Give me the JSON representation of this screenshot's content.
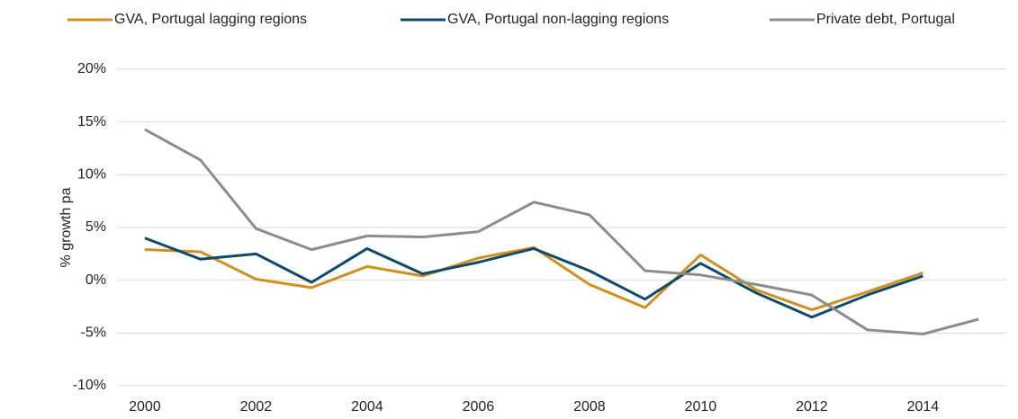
{
  "chart_data": {
    "type": "line",
    "y_label": "% growth pa",
    "x": [
      2000,
      2001,
      2002,
      2003,
      2004,
      2005,
      2006,
      2007,
      2008,
      2009,
      2010,
      2011,
      2012,
      2013,
      2014,
      2015
    ],
    "xlim": [
      1999.5,
      2015.5
    ],
    "xticks": [
      2000,
      2002,
      2004,
      2006,
      2008,
      2010,
      2012,
      2014
    ],
    "ylim": [
      -10,
      20
    ],
    "yticks": [
      {
        "value": -10,
        "label": "-10%"
      },
      {
        "value": -5,
        "label": "-5%"
      },
      {
        "value": 0,
        "label": "0%"
      },
      {
        "value": 5,
        "label": "5%"
      },
      {
        "value": 10,
        "label": "10%"
      },
      {
        "value": 15,
        "label": "15%"
      },
      {
        "value": 20,
        "label": "20%"
      }
    ],
    "grid": true,
    "legend": "top",
    "series": [
      {
        "name": "GVA, Portugal lagging regions",
        "color": "#d09020",
        "values": [
          2.9,
          2.7,
          0.1,
          -0.7,
          1.3,
          0.4,
          2.1,
          3.1,
          -0.4,
          -2.6,
          2.4,
          -0.9,
          -2.8,
          -1.1,
          0.7,
          null
        ]
      },
      {
        "name": "GVA, Portugal non-lagging regions",
        "color": "#0e4a6a",
        "values": [
          4.0,
          2.0,
          2.5,
          -0.2,
          3.0,
          0.6,
          1.7,
          3.0,
          0.9,
          -1.8,
          1.6,
          -1.2,
          -3.5,
          -1.4,
          0.4,
          null
        ]
      },
      {
        "name": "Private debt, Portugal",
        "color": "#8c8c8c",
        "values": [
          14.3,
          11.4,
          4.9,
          2.9,
          4.2,
          4.1,
          4.6,
          7.4,
          6.2,
          0.9,
          0.5,
          -0.4,
          -1.4,
          -4.7,
          -5.1,
          -3.7
        ]
      }
    ]
  }
}
